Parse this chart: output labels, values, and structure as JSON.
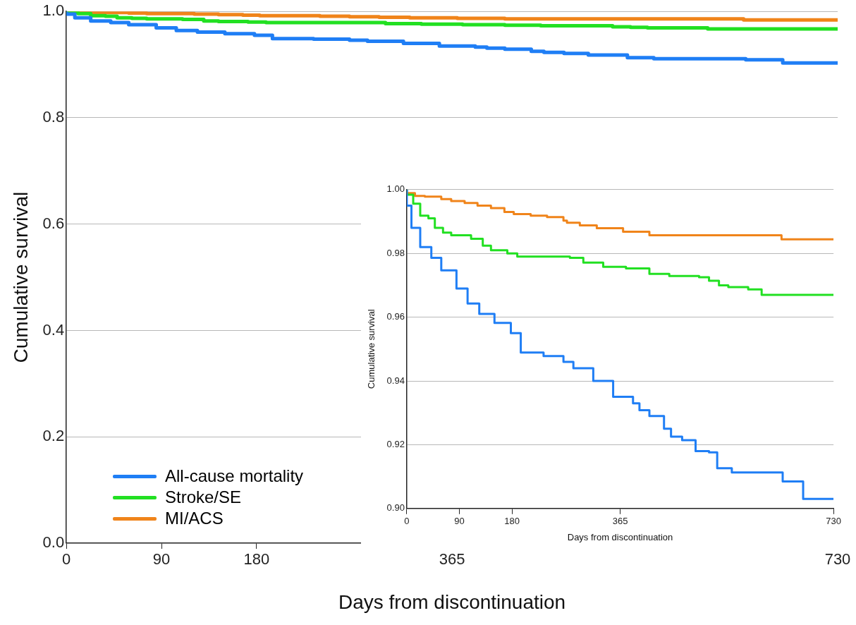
{
  "chart_data": [
    {
      "type": "step",
      "xlabel": "Days from discontinuation",
      "ylabel": "Cumulative survival",
      "xlim": [
        0,
        730
      ],
      "xticks": [
        0,
        90,
        180,
        365,
        730
      ],
      "ylim": [
        0,
        1
      ],
      "yticks": [
        {
          "value": 0,
          "label": "0.0"
        },
        0.2,
        0.4,
        0.6,
        0.8,
        {
          "value": 1,
          "label": "1.0"
        }
      ],
      "grid": "y",
      "legend": "bottom left",
      "line_style": "solid",
      "marker": "none",
      "series": [
        {
          "name": "All-cause mortality",
          "color": "#1f7ef5",
          "x": [
            0,
            8,
            23,
            42,
            59,
            85,
            104,
            124,
            150,
            178,
            195,
            234,
            268,
            285,
            319,
            353,
            387,
            398,
            415,
            440,
            452,
            471,
            494,
            517,
            531,
            556,
            643,
            678,
            699,
            730
          ],
          "values": [
            1,
            0.995,
            0.988,
            0.982,
            0.979,
            0.975,
            0.969,
            0.964,
            0.961,
            0.958,
            0.955,
            0.949,
            0.948,
            0.946,
            0.944,
            0.94,
            0.935,
            0.933,
            0.931,
            0.929,
            0.925,
            0.923,
            0.921,
            0.918,
            0.918,
            0.913,
            0.911,
            0.909,
            0.903,
            0.903
          ]
        },
        {
          "name": "Stroke/SE",
          "color": "#22e022",
          "x": [
            0,
            11,
            23,
            37,
            48,
            62,
            76,
            110,
            130,
            144,
            172,
            189,
            217,
            279,
            302,
            336,
            375,
            415,
            449,
            500,
            517,
            534,
            550,
            584,
            607,
            613,
            730
          ],
          "values": [
            1,
            0.998,
            0.996,
            0.992,
            0.991,
            0.988,
            0.987,
            0.986,
            0.985,
            0.982,
            0.981,
            0.98,
            0.979,
            0.979,
            0.979,
            0.977,
            0.976,
            0.975,
            0.974,
            0.973,
            0.973,
            0.971,
            0.97,
            0.969,
            0.969,
            0.967,
            0.967
          ]
        },
        {
          "name": "MI/ACS",
          "color": "#f0841a",
          "x": [
            0,
            14,
            31,
            59,
            76,
            99,
            121,
            144,
            167,
            183,
            212,
            240,
            268,
            274,
            296,
            325,
            370,
            415,
            449,
            641,
            646,
            730
          ],
          "values": [
            1,
            0.999,
            0.998,
            0.998,
            0.997,
            0.996,
            0.996,
            0.995,
            0.994,
            0.993,
            0.992,
            0.992,
            0.991,
            0.99,
            0.99,
            0.989,
            0.988,
            0.987,
            0.986,
            0.986,
            0.984,
            0.984
          ]
        }
      ]
    },
    {
      "type": "step",
      "xlabel": "Days from discontinuation",
      "ylabel": "Cumulative survival",
      "xlim": [
        0,
        730
      ],
      "xticks": [
        0,
        90,
        180,
        365,
        730
      ],
      "ylim": [
        0.9,
        1
      ],
      "yticks": [
        {
          "value": 0.9,
          "label": "0.90"
        },
        0.92,
        0.94,
        0.96,
        0.98,
        {
          "value": 1,
          "label": "1.00"
        }
      ],
      "grid": "y",
      "line_style": "solid",
      "marker": "none",
      "series": [
        {
          "color": "#1f7ef5",
          "x": [
            0,
            8,
            23,
            42,
            59,
            85,
            104,
            124,
            150,
            178,
            195,
            234,
            268,
            285,
            319,
            353,
            387,
            398,
            415,
            440,
            452,
            471,
            494,
            517,
            531,
            556,
            643,
            678,
            699,
            730
          ],
          "values": [
            1,
            0.995,
            0.988,
            0.982,
            0.9786,
            0.9747,
            0.969,
            0.9643,
            0.961,
            0.9582,
            0.955,
            0.9489,
            0.9478,
            0.946,
            0.944,
            0.94,
            0.935,
            0.933,
            0.9308,
            0.929,
            0.925,
            0.9225,
            0.9214,
            0.918,
            0.9176,
            0.9126,
            0.9113,
            0.9085,
            0.903,
            0.903
          ]
        },
        {
          "color": "#22e022",
          "x": [
            0,
            11,
            23,
            37,
            48,
            62,
            76,
            110,
            130,
            144,
            172,
            189,
            217,
            279,
            302,
            336,
            375,
            415,
            449,
            500,
            517,
            534,
            550,
            584,
            607,
            613,
            730
          ],
          "values": [
            1,
            0.9984,
            0.9956,
            0.9918,
            0.991,
            0.988,
            0.9865,
            0.9857,
            0.9846,
            0.9824,
            0.981,
            0.98,
            0.979,
            0.979,
            0.9786,
            0.9771,
            0.9758,
            0.9753,
            0.9736,
            0.9729,
            0.9725,
            0.9714,
            0.97,
            0.9694,
            0.9687,
            0.967,
            0.967
          ]
        },
        {
          "color": "#f0841a",
          "x": [
            0,
            14,
            31,
            59,
            76,
            99,
            121,
            144,
            167,
            183,
            212,
            240,
            268,
            274,
            296,
            325,
            370,
            415,
            449,
            641,
            646,
            730
          ],
          "values": [
            1,
            0.9989,
            0.998,
            0.9978,
            0.997,
            0.9964,
            0.9958,
            0.995,
            0.9942,
            0.993,
            0.9923,
            0.9918,
            0.9914,
            0.9903,
            0.9896,
            0.9888,
            0.9879,
            0.9868,
            0.9857,
            0.9857,
            0.9844,
            0.9844
          ]
        }
      ]
    }
  ]
}
